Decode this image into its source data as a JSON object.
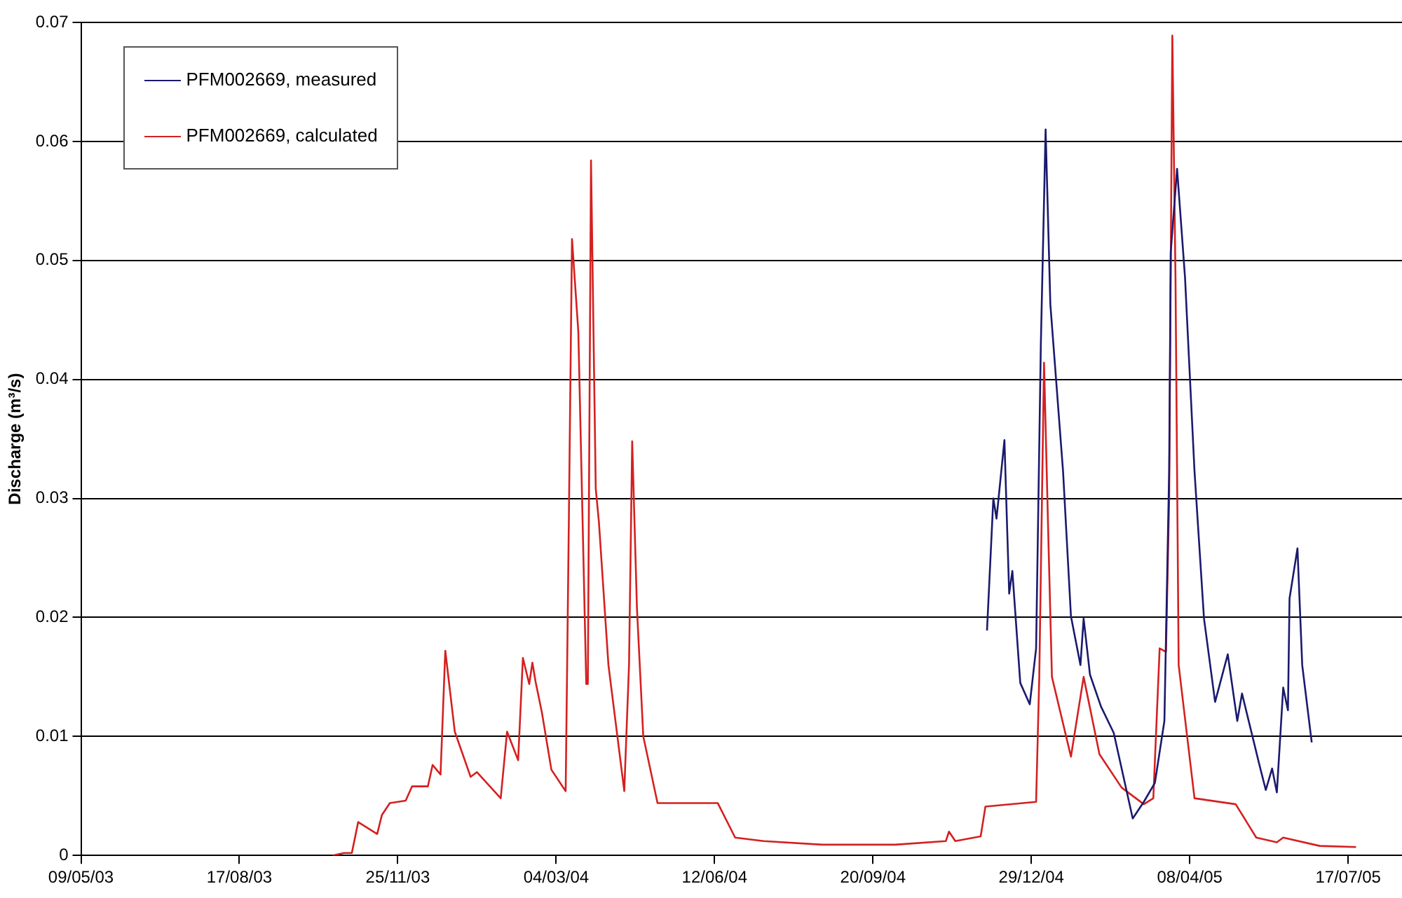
{
  "chart_data": {
    "type": "line",
    "ylabel": "Discharge (m³/s)",
    "xlim": [
      "2003-05-09",
      "2005-08-20"
    ],
    "ylim": [
      0,
      0.07
    ],
    "xticks": [
      {
        "value": "2003-05-09",
        "label": "09/05/03"
      },
      {
        "value": "2003-08-17",
        "label": "17/08/03"
      },
      {
        "value": "2003-11-25",
        "label": "25/11/03"
      },
      {
        "value": "2004-03-04",
        "label": "04/03/04"
      },
      {
        "value": "2004-06-12",
        "label": "12/06/04"
      },
      {
        "value": "2004-09-20",
        "label": "20/09/04"
      },
      {
        "value": "2004-12-29",
        "label": "29/12/04"
      },
      {
        "value": "2005-04-08",
        "label": "08/04/05"
      },
      {
        "value": "2005-07-17",
        "label": "17/07/05"
      }
    ],
    "yticks": [
      0,
      0.01,
      0.02,
      0.03,
      0.04,
      0.05,
      0.06,
      0.07
    ],
    "grid": "y",
    "legend": "top left",
    "series": [
      {
        "name": "PFM002669, measured",
        "color": "#1a1a6e",
        "x": [
          "2004-12-01",
          "2004-12-05",
          "2004-12-07",
          "2004-12-12",
          "2004-12-15",
          "2004-12-17",
          "2004-12-22",
          "2004-12-28",
          "2005-01-01",
          "2005-01-04",
          "2005-01-07",
          "2005-01-10",
          "2005-01-18",
          "2005-01-23",
          "2005-01-29",
          "2005-01-31",
          "2005-02-04",
          "2005-02-11",
          "2005-02-19",
          "2005-02-26",
          "2005-03-03",
          "2005-03-10",
          "2005-03-17",
          "2005-03-23",
          "2005-03-26",
          "2005-03-27",
          "2005-03-31",
          "2005-04-05",
          "2005-04-11",
          "2005-04-17",
          "2005-04-24",
          "2005-05-02",
          "2005-05-08",
          "2005-05-11",
          "2005-05-22",
          "2005-05-26",
          "2005-05-30",
          "2005-06-02",
          "2005-06-06",
          "2005-06-09",
          "2005-06-10",
          "2005-06-15",
          "2005-06-18",
          "2005-06-24"
        ],
        "values": [
          0.0189,
          0.03,
          0.0283,
          0.0349,
          0.022,
          0.0239,
          0.0145,
          0.0127,
          0.0174,
          0.043,
          0.061,
          0.0463,
          0.0323,
          0.0201,
          0.016,
          0.0199,
          0.0152,
          0.0125,
          0.0103,
          0.0061,
          0.0031,
          0.0045,
          0.0061,
          0.0113,
          0.0323,
          0.0507,
          0.0577,
          0.0486,
          0.0323,
          0.0199,
          0.0129,
          0.0169,
          0.0113,
          0.0136,
          0.0076,
          0.0055,
          0.0073,
          0.0053,
          0.0141,
          0.0122,
          0.0216,
          0.0258,
          0.016,
          0.0095
        ]
      },
      {
        "name": "PFM002669, calculated",
        "color": "#d42020",
        "x": [
          "2003-10-15",
          "2003-10-22",
          "2003-10-27",
          "2003-10-31",
          "2003-11-12",
          "2003-11-15",
          "2003-11-20",
          "2003-11-30",
          "2003-12-04",
          "2003-12-14",
          "2003-12-17",
          "2003-12-22",
          "2003-12-25",
          "2003-12-31",
          "2004-01-10",
          "2004-01-14",
          "2004-01-29",
          "2004-02-02",
          "2004-02-09",
          "2004-02-12",
          "2004-02-16",
          "2004-02-18",
          "2004-02-20",
          "2004-02-24",
          "2004-03-01",
          "2004-03-10",
          "2004-03-12",
          "2004-03-14",
          "2004-03-18",
          "2004-03-23",
          "2004-03-24",
          "2004-03-26",
          "2004-03-29",
          "2004-03-31",
          "2004-04-06",
          "2004-04-16",
          "2004-04-19",
          "2004-04-21",
          "2004-04-24",
          "2004-04-28",
          "2004-05-07",
          "2004-06-14",
          "2004-06-25",
          "2004-07-13",
          "2004-08-19",
          "2004-10-04",
          "2004-11-05",
          "2004-11-07",
          "2004-11-11",
          "2004-11-27",
          "2004-11-30",
          "2005-01-01",
          "2005-01-03",
          "2005-01-06",
          "2005-01-09",
          "2005-01-11",
          "2005-01-23",
          "2005-01-31",
          "2005-02-10",
          "2005-02-24",
          "2005-03-10",
          "2005-03-16",
          "2005-03-20",
          "2005-03-24",
          "2005-03-26",
          "2005-03-28",
          "2005-03-30",
          "2005-04-01",
          "2005-04-11",
          "2005-05-07",
          "2005-05-20",
          "2005-06-02",
          "2005-06-06",
          "2005-06-29",
          "2005-07-22"
        ],
        "values": [
          0,
          0.0002,
          0.0002,
          0.0028,
          0.0018,
          0.0034,
          0.0044,
          0.0046,
          0.0058,
          0.0058,
          0.0076,
          0.0068,
          0.0172,
          0.0104,
          0.0066,
          0.007,
          0.0048,
          0.0104,
          0.008,
          0.0166,
          0.0144,
          0.0162,
          0.0146,
          0.012,
          0.0072,
          0.0054,
          0.028,
          0.0518,
          0.044,
          0.0144,
          0.0144,
          0.0584,
          0.0308,
          0.028,
          0.016,
          0.0054,
          0.016,
          0.0348,
          0.0208,
          0.01,
          0.0044,
          0.0044,
          0.0015,
          0.0012,
          0.0009,
          0.0009,
          0.0012,
          0.002,
          0.0012,
          0.0016,
          0.0041,
          0.0045,
          0.015,
          0.0414,
          0.0253,
          0.015,
          0.0083,
          0.015,
          0.0085,
          0.0057,
          0.0043,
          0.0048,
          0.0174,
          0.0171,
          0.03,
          0.0689,
          0.0486,
          0.016,
          0.0048,
          0.0043,
          0.0015,
          0.0011,
          0.0015,
          0.0008,
          0.0007
        ]
      }
    ]
  }
}
